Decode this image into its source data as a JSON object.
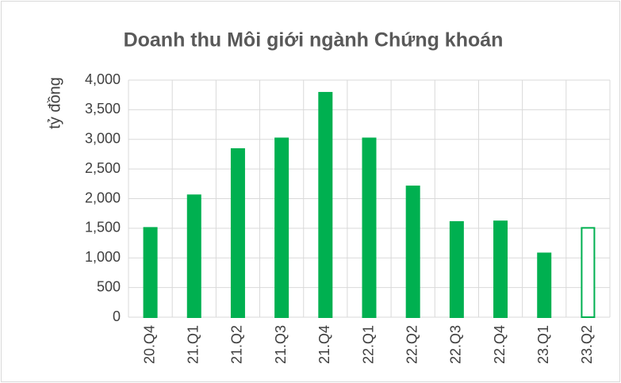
{
  "chart_data": {
    "type": "bar",
    "title": "Doanh thu Môi giới ngành Chứng khoán",
    "y_label": "tỷ đồng",
    "categories": [
      "20.Q4",
      "21.Q1",
      "21.Q2",
      "21.Q3",
      "21.Q4",
      "22.Q1",
      "22.Q2",
      "22.Q3",
      "22.Q4",
      "23.Q1",
      "23.Q2"
    ],
    "values": [
      1520,
      2070,
      2850,
      3030,
      3800,
      3030,
      2220,
      1620,
      1630,
      1090,
      1520
    ],
    "color": "#00b050",
    "bar_fill": [
      "#00b050",
      "#00b050",
      "#00b050",
      "#00b050",
      "#00b050",
      "#00b050",
      "#00b050",
      "#00b050",
      "#00b050",
      "#00b050",
      "#ffffff"
    ],
    "ylim": [
      0,
      4000
    ],
    "yticks": [
      0,
      500,
      {
        "value": 1000,
        "label": "1,000"
      },
      {
        "value": 1500,
        "label": "1,500"
      },
      {
        "value": 2000,
        "label": "2,000"
      },
      {
        "value": 2500,
        "label": "2,500"
      },
      {
        "value": 3000,
        "label": "3,000"
      },
      {
        "value": 3500,
        "label": "3,500"
      },
      {
        "value": 4000,
        "label": "4,000"
      }
    ],
    "grid": true
  }
}
